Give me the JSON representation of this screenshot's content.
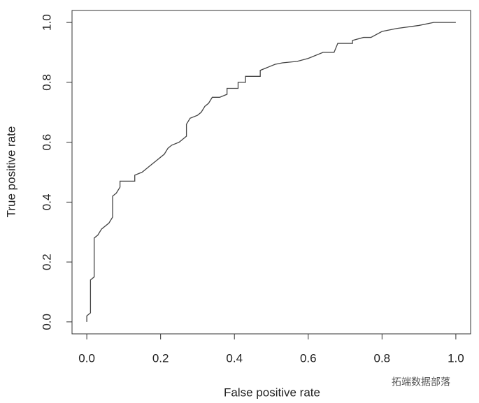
{
  "chart_data": {
    "type": "line",
    "x_label": "False positive rate",
    "y_label": "True positive rate",
    "watermark": "拓端数据部落",
    "x": [
      0,
      0,
      0.01,
      0.01,
      0.02,
      0.02,
      0.03,
      0.04,
      0.06,
      0.07,
      0.07,
      0.08,
      0.09,
      0.09,
      0.13,
      0.13,
      0.15,
      0.16,
      0.17,
      0.18,
      0.19,
      0.2,
      0.21,
      0.22,
      0.23,
      0.25,
      0.26,
      0.27,
      0.27,
      0.28,
      0.3,
      0.31,
      0.32,
      0.33,
      0.34,
      0.36,
      0.38,
      0.38,
      0.41,
      0.41,
      0.43,
      0.43,
      0.47,
      0.47,
      0.49,
      0.51,
      0.53,
      0.57,
      0.6,
      0.64,
      0.67,
      0.68,
      0.72,
      0.72,
      0.75,
      0.77,
      0.8,
      0.84,
      0.9,
      0.94,
      1.0
    ],
    "series": [
      {
        "color": "#444444",
        "values": [
          0,
          0.02,
          0.03,
          0.14,
          0.15,
          0.28,
          0.29,
          0.31,
          0.33,
          0.35,
          0.42,
          0.43,
          0.45,
          0.47,
          0.47,
          0.49,
          0.5,
          0.51,
          0.52,
          0.53,
          0.54,
          0.55,
          0.56,
          0.58,
          0.59,
          0.6,
          0.61,
          0.62,
          0.66,
          0.68,
          0.69,
          0.7,
          0.72,
          0.73,
          0.75,
          0.75,
          0.76,
          0.78,
          0.78,
          0.8,
          0.8,
          0.82,
          0.82,
          0.84,
          0.85,
          0.86,
          0.865,
          0.87,
          0.88,
          0.9,
          0.9,
          0.93,
          0.93,
          0.94,
          0.95,
          0.95,
          0.97,
          0.98,
          0.99,
          1.0,
          1.0
        ]
      }
    ],
    "xlim": [
      -0.04,
      1.04
    ],
    "ylim": [
      -0.04,
      1.04
    ],
    "xticks": [
      {
        "value": 0,
        "label": "0.0"
      },
      0.2,
      0.4,
      0.6,
      0.8,
      {
        "value": 1,
        "label": "1.0"
      }
    ],
    "yticks": [
      {
        "value": 0,
        "label": "0.0"
      },
      0.2,
      0.4,
      0.6,
      0.8,
      {
        "value": 1,
        "label": "1.0"
      }
    ]
  }
}
